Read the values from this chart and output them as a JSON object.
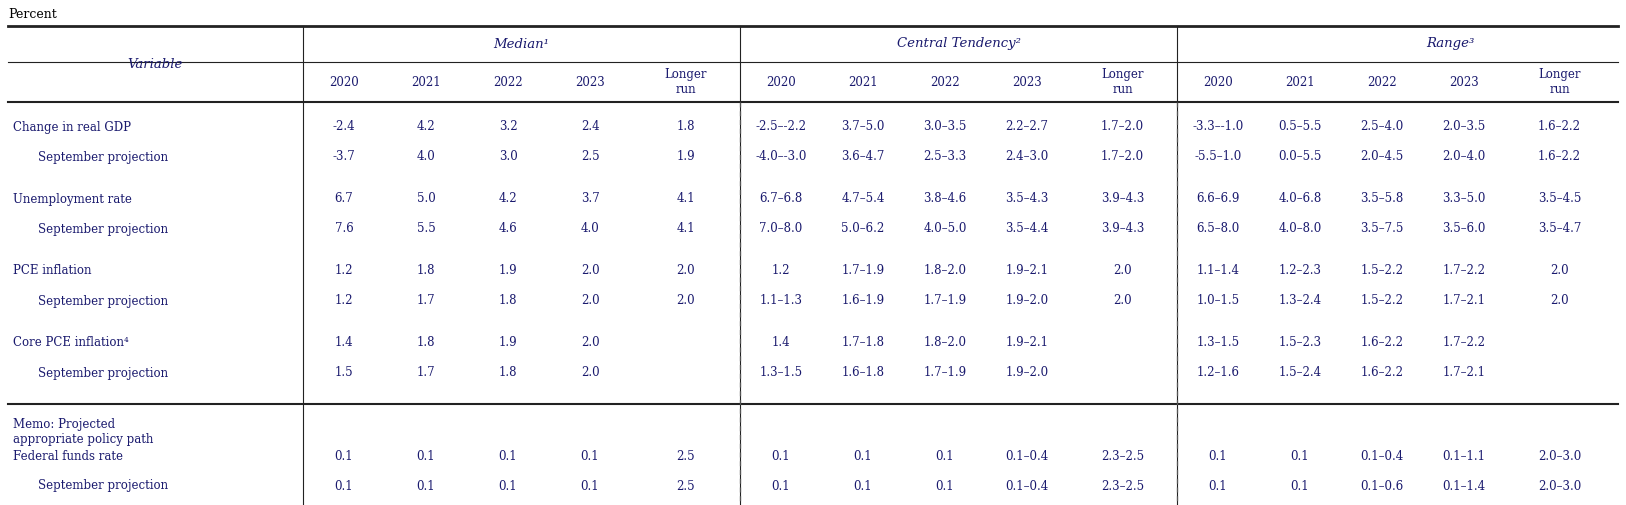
{
  "title_label": "Percent",
  "background_color": "#ffffff",
  "text_color": "#1a1a6e",
  "header_group1_label": "Median¹",
  "header_group2_label": "Central Tendency²",
  "header_group3_label": "Range³",
  "col_headers": [
    "Variable",
    "2020",
    "2021",
    "2022",
    "2023",
    "Longer\nrun",
    "2020",
    "2021",
    "2022",
    "2023",
    "Longer\nrun",
    "2020",
    "2021",
    "2022",
    "2023",
    "Longer\nrun"
  ],
  "rows": [
    [
      "Change in real GDP",
      "-2.4",
      "4.2",
      "3.2",
      "2.4",
      "1.8",
      "-2.5–-2.2",
      "3.7–5.0",
      "3.0–3.5",
      "2.2–2.7",
      "1.7–2.0",
      "-3.3–-1.0",
      "0.5–5.5",
      "2.5–4.0",
      "2.0–3.5",
      "1.6–2.2"
    ],
    [
      "    September projection",
      "-3.7",
      "4.0",
      "3.0",
      "2.5",
      "1.9",
      "-4.0–-3.0",
      "3.6–4.7",
      "2.5–3.3",
      "2.4–3.0",
      "1.7–2.0",
      "-5.5–1.0",
      "0.0–5.5",
      "2.0–4.5",
      "2.0–4.0",
      "1.6–2.2"
    ],
    [
      "Unemployment rate",
      "6.7",
      "5.0",
      "4.2",
      "3.7",
      "4.1",
      "6.7–6.8",
      "4.7–5.4",
      "3.8–4.6",
      "3.5–4.3",
      "3.9–4.3",
      "6.6–6.9",
      "4.0–6.8",
      "3.5–5.8",
      "3.3–5.0",
      "3.5–4.5"
    ],
    [
      "    September projection",
      "7.6",
      "5.5",
      "4.6",
      "4.0",
      "4.1",
      "7.0–8.0",
      "5.0–6.2",
      "4.0–5.0",
      "3.5–4.4",
      "3.9–4.3",
      "6.5–8.0",
      "4.0–8.0",
      "3.5–7.5",
      "3.5–6.0",
      "3.5–4.7"
    ],
    [
      "PCE inflation",
      "1.2",
      "1.8",
      "1.9",
      "2.0",
      "2.0",
      "1.2",
      "1.7–1.9",
      "1.8–2.0",
      "1.9–2.1",
      "2.0",
      "1.1–1.4",
      "1.2–2.3",
      "1.5–2.2",
      "1.7–2.2",
      "2.0"
    ],
    [
      "    September projection",
      "1.2",
      "1.7",
      "1.8",
      "2.0",
      "2.0",
      "1.1–1.3",
      "1.6–1.9",
      "1.7–1.9",
      "1.9–2.0",
      "2.0",
      "1.0–1.5",
      "1.3–2.4",
      "1.5–2.2",
      "1.7–2.1",
      "2.0"
    ],
    [
      "Core PCE inflation⁴",
      "1.4",
      "1.8",
      "1.9",
      "2.0",
      "",
      "1.4",
      "1.7–1.8",
      "1.8–2.0",
      "1.9–2.1",
      "",
      "1.3–1.5",
      "1.5–2.3",
      "1.6–2.2",
      "1.7–2.2",
      ""
    ],
    [
      "    September projection",
      "1.5",
      "1.7",
      "1.8",
      "2.0",
      "",
      "1.3–1.5",
      "1.6–1.8",
      "1.7–1.9",
      "1.9–2.0",
      "",
      "1.2–1.6",
      "1.5–2.4",
      "1.6–2.2",
      "1.7–2.1",
      ""
    ]
  ],
  "memo_label": "Memo: Projected\nappropriate policy path",
  "memo_rows": [
    [
      "Federal funds rate",
      "0.1",
      "0.1",
      "0.1",
      "0.1",
      "2.5",
      "0.1",
      "0.1",
      "0.1",
      "0.1–0.4",
      "2.3–2.5",
      "0.1",
      "0.1",
      "0.1–0.4",
      "0.1–1.1",
      "2.0–3.0"
    ],
    [
      "    September projection",
      "0.1",
      "0.1",
      "0.1",
      "0.1",
      "2.5",
      "0.1",
      "0.1",
      "0.1",
      "0.1–0.4",
      "2.3–2.5",
      "0.1",
      "0.1",
      "0.1–0.6",
      "0.1–1.4",
      "2.0–3.0"
    ]
  ]
}
